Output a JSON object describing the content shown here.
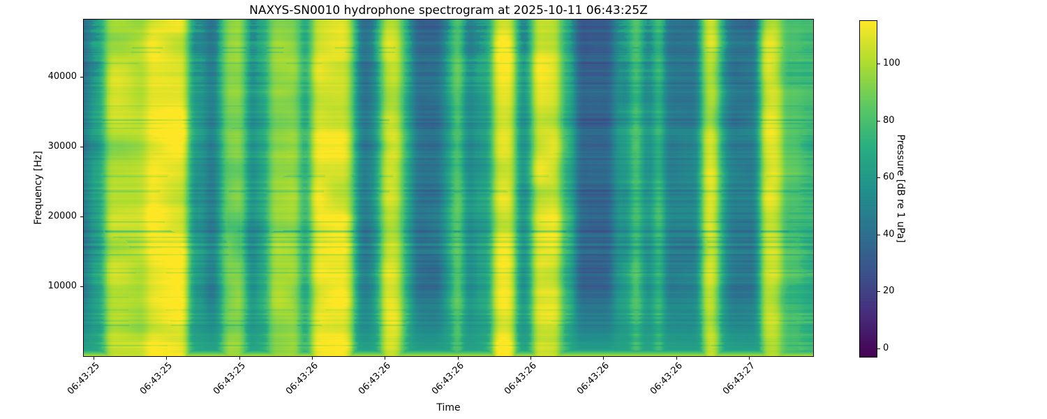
{
  "figure": {
    "title": "NAXYS-SN0010 hydrophone spectrogram at 2025-10-11 06:43:25Z",
    "xlabel": "Time",
    "ylabel": "Frequency [Hz]",
    "colorbar_label": "Pressure [dB re 1 uPa]"
  },
  "colors": {
    "background": "#ffffff",
    "text": "#000000",
    "viridis_stops": [
      "#440154",
      "#472d7b",
      "#3b528b",
      "#2c728e",
      "#21918c",
      "#28ae80",
      "#5ec962",
      "#addc30",
      "#fde725"
    ]
  },
  "chart_data": {
    "type": "heatmap",
    "subtype": "spectrogram",
    "title": "NAXYS-SN0010 hydrophone spectrogram at 2025-10-11 06:43:25Z",
    "xlabel": "Time",
    "ylabel": "Frequency [Hz]",
    "x_tick_labels": [
      "06:43:25",
      "06:43:25",
      "06:43:25",
      "06:43:26",
      "06:43:26",
      "06:43:26",
      "06:43:26",
      "06:43:26",
      "06:43:26",
      "06:43:27"
    ],
    "y_ticks": [
      10000,
      20000,
      30000,
      40000
    ],
    "ylim": [
      0,
      48140
    ],
    "grid": false,
    "legend": "none",
    "colorbar": {
      "label": "Pressure [dB re 1 uPa]",
      "ticks": [
        0,
        20,
        40,
        60,
        80,
        100
      ],
      "clim": [
        -3,
        115
      ],
      "colormap": "viridis",
      "position": "right"
    },
    "time_bands_key": [
      "t_start_fraction",
      "t_end_fraction",
      "mean_level_dB"
    ],
    "time_bands": [
      [
        0.0,
        0.008,
        45
      ],
      [
        0.008,
        0.029,
        63
      ],
      [
        0.029,
        0.086,
        100
      ],
      [
        0.086,
        0.144,
        112
      ],
      [
        0.144,
        0.168,
        60
      ],
      [
        0.168,
        0.182,
        46
      ],
      [
        0.182,
        0.189,
        60
      ],
      [
        0.189,
        0.223,
        90
      ],
      [
        0.223,
        0.235,
        52
      ],
      [
        0.235,
        0.254,
        65
      ],
      [
        0.254,
        0.297,
        96
      ],
      [
        0.297,
        0.312,
        68
      ],
      [
        0.312,
        0.366,
        110
      ],
      [
        0.366,
        0.374,
        85
      ],
      [
        0.374,
        0.396,
        46
      ],
      [
        0.396,
        0.408,
        62
      ],
      [
        0.408,
        0.436,
        107
      ],
      [
        0.436,
        0.451,
        70
      ],
      [
        0.451,
        0.492,
        42
      ],
      [
        0.492,
        0.505,
        60
      ],
      [
        0.505,
        0.52,
        88
      ],
      [
        0.52,
        0.537,
        54
      ],
      [
        0.537,
        0.561,
        63
      ],
      [
        0.561,
        0.592,
        110
      ],
      [
        0.592,
        0.614,
        58
      ],
      [
        0.614,
        0.655,
        109
      ],
      [
        0.655,
        0.674,
        72
      ],
      [
        0.674,
        0.726,
        36
      ],
      [
        0.726,
        0.751,
        60
      ],
      [
        0.751,
        0.764,
        87
      ],
      [
        0.764,
        0.784,
        58
      ],
      [
        0.784,
        0.794,
        85
      ],
      [
        0.794,
        0.847,
        48
      ],
      [
        0.847,
        0.871,
        105
      ],
      [
        0.871,
        0.882,
        62
      ],
      [
        0.882,
        0.927,
        45
      ],
      [
        0.927,
        0.956,
        106
      ],
      [
        0.956,
        0.985,
        80
      ],
      [
        0.985,
        1.0,
        75
      ]
    ]
  }
}
